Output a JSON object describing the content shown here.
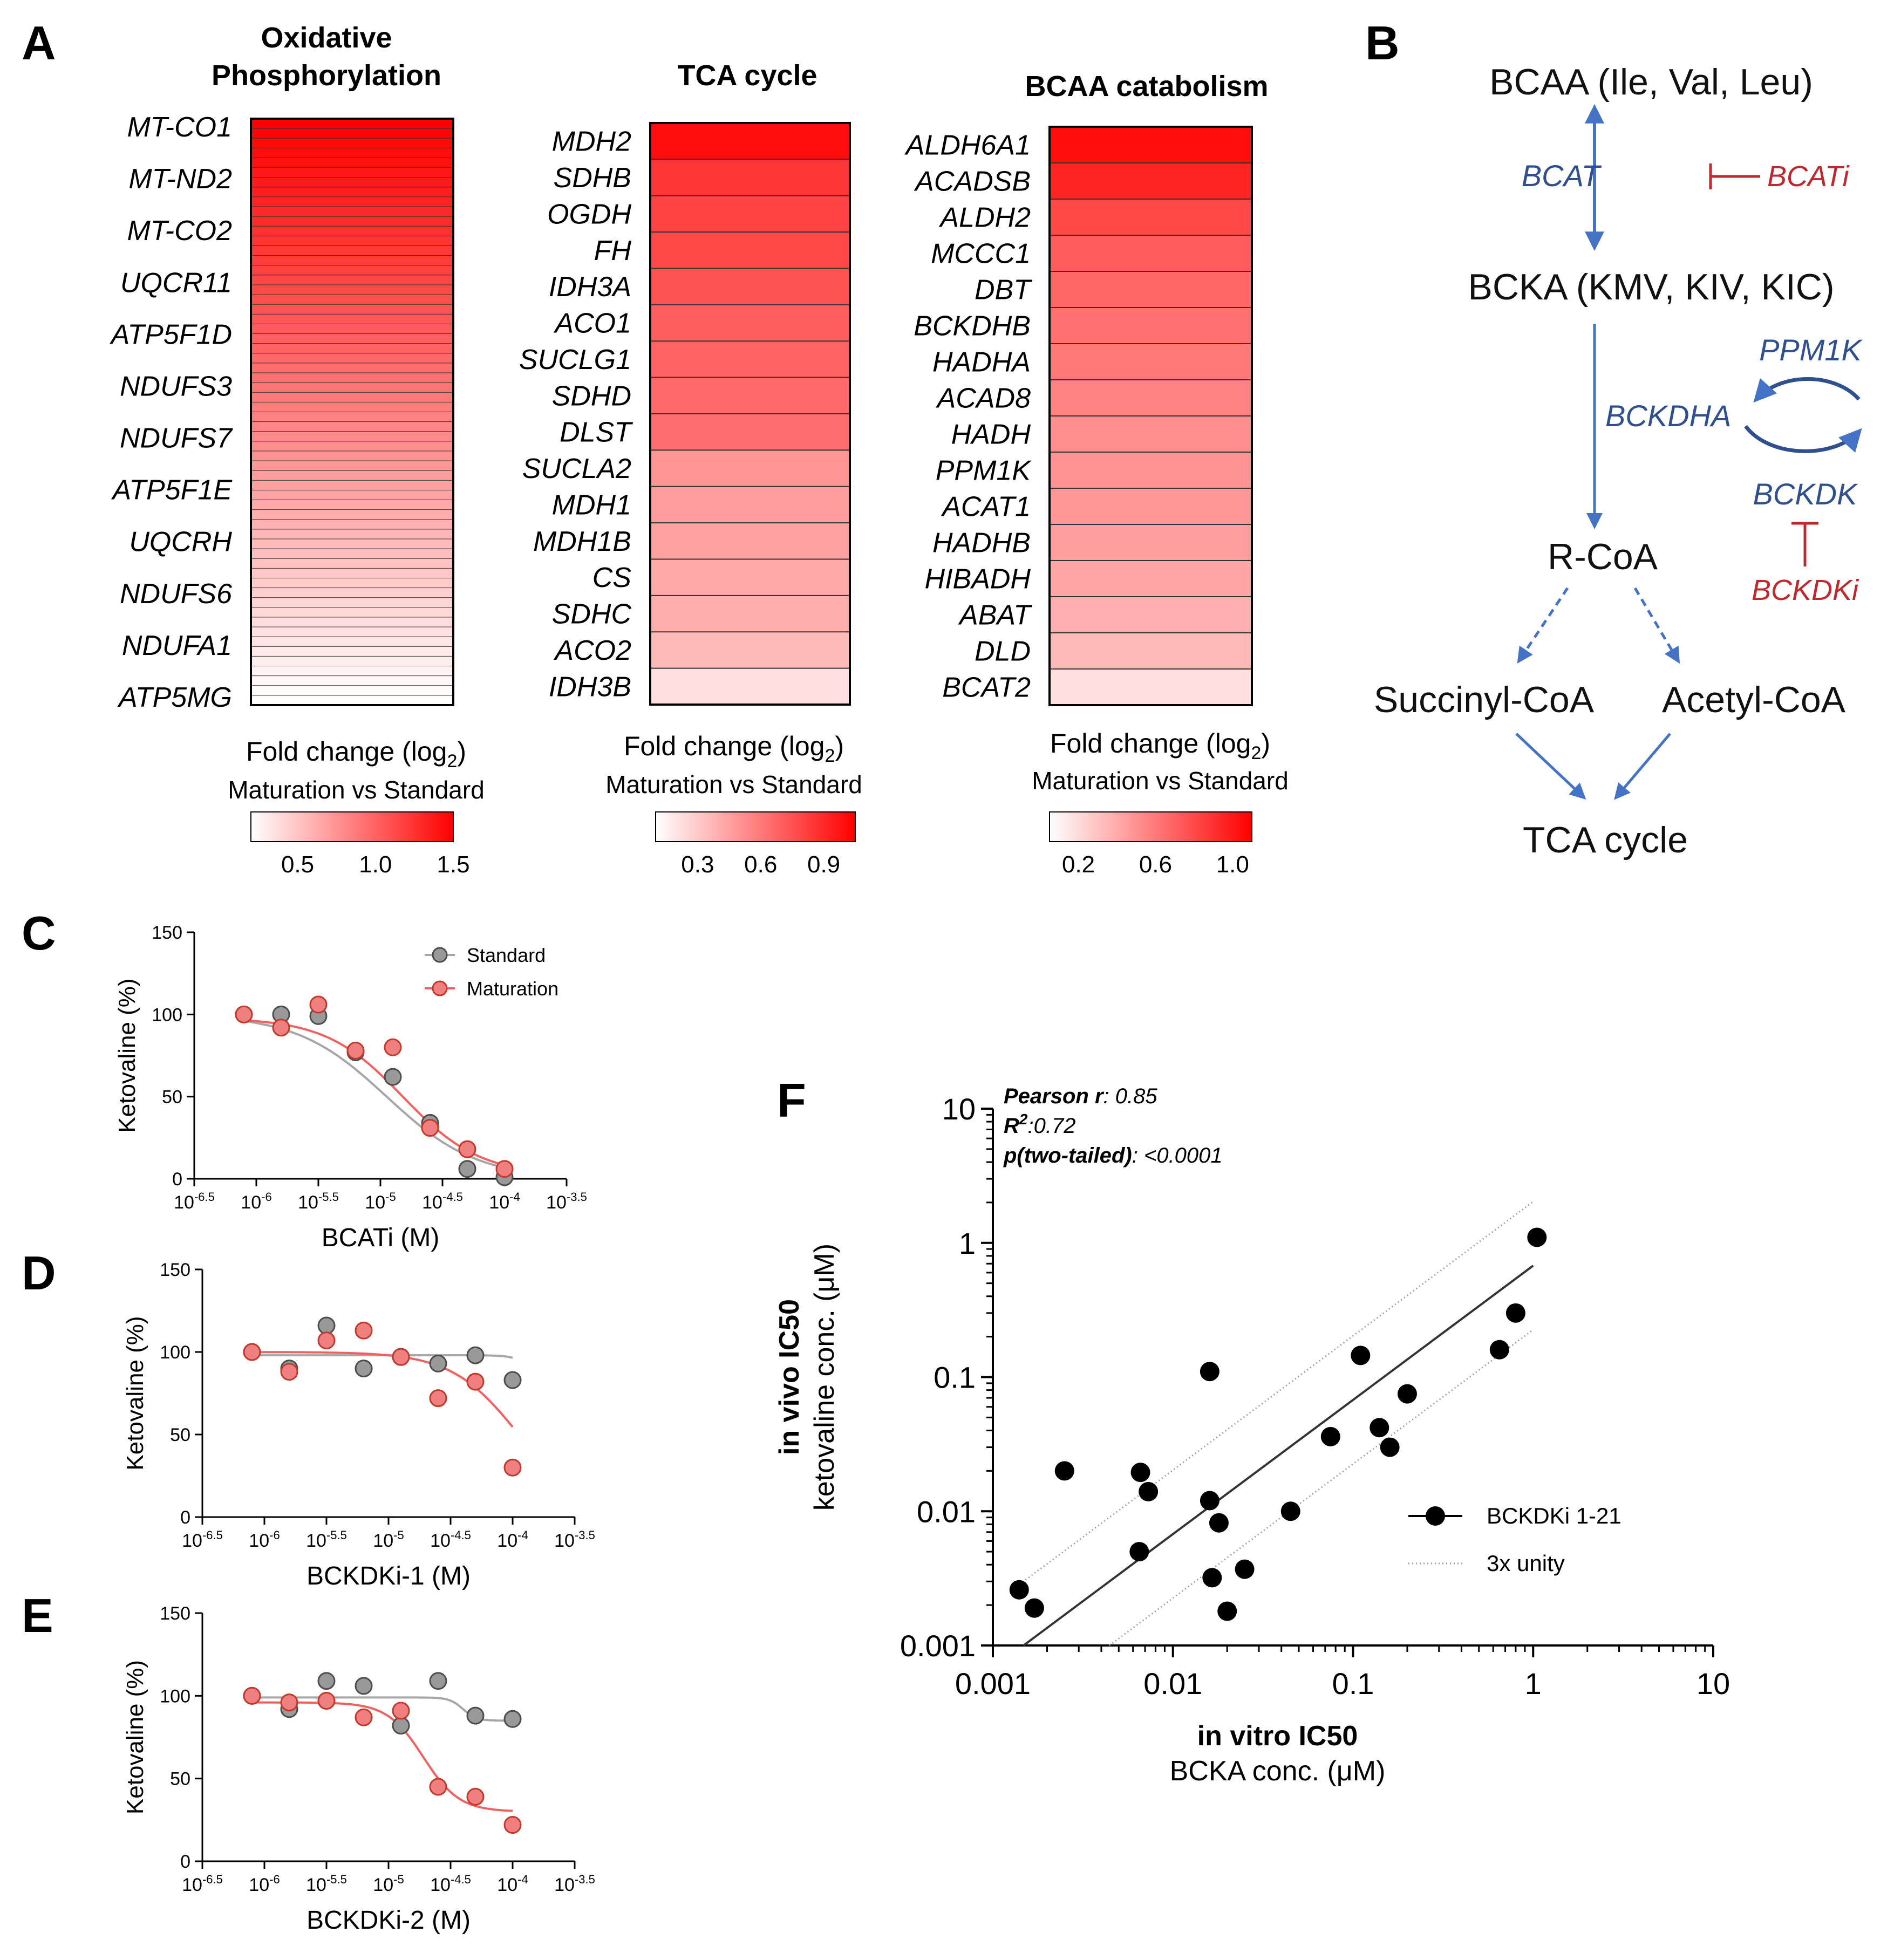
{
  "panels": {
    "A": "A",
    "B": "B",
    "C": "C",
    "D": "D",
    "E": "E",
    "F": "F"
  },
  "colors": {
    "red": "#ff0000",
    "pathway_blue": "#2f4f8f",
    "arrow_blue": "#4472c4",
    "inhibitor_red": "#c0282d",
    "standard_gray": "#999999",
    "maturation_red": "#f08080"
  },
  "heatmaps": [
    {
      "title_lines": [
        "Oxidative",
        "Phosphorylation"
      ],
      "genes": [
        "MT-CO1",
        "MT-ND2",
        "MT-CO2",
        "UQCR11",
        "ATP5F1D",
        "NDUFS3",
        "NDUFS7",
        "ATP5F1E",
        "UQCRH",
        "NDUFS6",
        "NDUFA1",
        "ATP5MG"
      ],
      "row_count": 60,
      "max_value": 1.5,
      "min_value": 0.2,
      "colorbar": {
        "title": "Fold change (log",
        "title_sub": "2",
        "title_end": ")",
        "subtitle": "Maturation vs Standard",
        "min": 0.2,
        "max": 1.5,
        "ticks": [
          "0.5",
          "1.0",
          "1.5"
        ]
      }
    },
    {
      "title_lines": [
        "TCA cycle"
      ],
      "genes": [
        "MDH2",
        "SDHB",
        "OGDH",
        "FH",
        "IDH3A",
        "ACO1",
        "SUCLG1",
        "SDHD",
        "DLST",
        "SUCLA2",
        "MDH1",
        "MDH1B",
        "CS",
        "SDHC",
        "ACO2",
        "IDH3B"
      ],
      "values": [
        1.0,
        0.85,
        0.8,
        0.78,
        0.74,
        0.7,
        0.68,
        0.66,
        0.64,
        0.5,
        0.47,
        0.45,
        0.42,
        0.4,
        0.36,
        0.22
      ],
      "colorbar": {
        "title": "Fold change (log",
        "title_sub": "2",
        "title_end": ")",
        "subtitle": "Maturation vs Standard",
        "min": 0.1,
        "max": 1.05,
        "ticks": [
          "0.3",
          "0.6",
          "0.9"
        ]
      }
    },
    {
      "title_lines": [
        "BCAA catabolism"
      ],
      "genes": [
        "ALDH6A1",
        "ACADSB",
        "ALDH2",
        "MCCC1",
        "DBT",
        "BCKDHB",
        "HADHA",
        "ACAD8",
        "HADH",
        "PPM1K",
        "ACAT1",
        "HADHB",
        "HIBADH",
        "ABAT",
        "DLD",
        "BCAT2"
      ],
      "values": [
        1.05,
        0.95,
        0.8,
        0.72,
        0.68,
        0.64,
        0.6,
        0.56,
        0.52,
        0.5,
        0.48,
        0.45,
        0.42,
        0.38,
        0.34,
        0.18
      ],
      "colorbar": {
        "title": "Fold change (log",
        "title_sub": "2",
        "title_end": ")",
        "subtitle": "Maturation vs Standard",
        "min": 0.05,
        "max": 1.1,
        "ticks": [
          "0.2",
          "0.6",
          "1.0"
        ]
      }
    }
  ],
  "pathway": {
    "bcaa": "BCAA (Ile, Val, Leu)",
    "bcat": "BCAT",
    "bcati": "BCATi",
    "bcka": "BCKA (KMV, KIV, KIC)",
    "ppm1k": "PPM1K",
    "bckdha": "BCKDHA",
    "bckdk": "BCKDK",
    "bckdki": "BCKDKi",
    "rcoa": "R-CoA",
    "succinyl": "Succinyl-CoA",
    "acetyl": "Acetyl-CoA",
    "tca": "TCA cycle"
  },
  "chart_data": [
    {
      "panel": "C",
      "type": "scatter",
      "xscale": "log10",
      "xlabel": "BCATi (M)",
      "ylabel": "Ketovaline (%)",
      "xlim": [
        -6.5,
        -3.5
      ],
      "ylim": [
        0,
        150
      ],
      "yticks": [
        0,
        50,
        100,
        150
      ],
      "xtick_base": "10",
      "xtick_exponents": [
        "-6.5",
        "-6",
        "-5.5",
        "-5",
        "-4.5",
        "-4",
        "-3.5"
      ],
      "legend": [
        "Standard",
        "Maturation"
      ],
      "series": [
        {
          "name": "Standard",
          "x": [
            -6.1,
            -5.8,
            -5.5,
            -5.2,
            -4.9,
            -4.6,
            -4.3,
            -4.0
          ],
          "y": [
            100,
            100,
            99,
            77,
            62,
            34,
            6,
            1
          ],
          "fit": {
            "top": 100,
            "bottom": 0,
            "logic50": -4.95,
            "hill": 1.2
          }
        },
        {
          "name": "Maturation",
          "x": [
            -6.1,
            -5.8,
            -5.5,
            -5.2,
            -4.9,
            -4.6,
            -4.3,
            -4.0
          ],
          "y": [
            100,
            92,
            106,
            78,
            80,
            31,
            18,
            6
          ],
          "fit": {
            "top": 98,
            "bottom": 2,
            "logic50": -4.82,
            "hill": 1.4
          }
        }
      ]
    },
    {
      "panel": "D",
      "type": "scatter",
      "xscale": "log10",
      "xlabel": "BCKDKi-1 (M)",
      "ylabel": "Ketovaline (%)",
      "xlim": [
        -6.5,
        -3.5
      ],
      "ylim": [
        0,
        150
      ],
      "yticks": [
        0,
        50,
        100,
        150
      ],
      "xtick_base": "10",
      "xtick_exponents": [
        "-6.5",
        "-6",
        "-5.5",
        "-5",
        "-4.5",
        "-4",
        "-3.5"
      ],
      "series": [
        {
          "name": "Standard",
          "x": [
            -6.1,
            -5.8,
            -5.5,
            -5.2,
            -4.9,
            -4.6,
            -4.3,
            -4.0
          ],
          "y": [
            100,
            90,
            116,
            90,
            97,
            93,
            98,
            83
          ],
          "fit": {
            "top": 98,
            "bottom": 0,
            "logic50": -3.7,
            "hill": 6
          }
        },
        {
          "name": "Maturation",
          "x": [
            -6.1,
            -5.8,
            -5.5,
            -5.2,
            -4.9,
            -4.6,
            -4.3,
            -4.0
          ],
          "y": [
            100,
            88,
            107,
            113,
            97,
            72,
            82,
            30
          ],
          "fit": {
            "top": 100,
            "bottom": 0,
            "logic50": -3.95,
            "hill": 1.6
          }
        }
      ]
    },
    {
      "panel": "E",
      "type": "scatter",
      "xscale": "log10",
      "xlabel": "BCKDKi-2 (M)",
      "ylabel": "Ketovaline (%)",
      "xlim": [
        -6.5,
        -3.5
      ],
      "ylim": [
        0,
        150
      ],
      "yticks": [
        0,
        50,
        100,
        150
      ],
      "xtick_base": "10",
      "xtick_exponents": [
        "-6.5",
        "-6",
        "-5.5",
        "-5",
        "-4.5",
        "-4",
        "-3.5"
      ],
      "series": [
        {
          "name": "Standard",
          "x": [
            -6.1,
            -5.8,
            -5.5,
            -5.2,
            -4.9,
            -4.6,
            -4.3,
            -4.0
          ],
          "y": [
            100,
            92,
            109,
            106,
            82,
            109,
            88,
            86
          ],
          "fit": {
            "top": 99,
            "bottom": 85,
            "logic50": -4.4,
            "hill": 8
          }
        },
        {
          "name": "Maturation",
          "x": [
            -6.1,
            -5.8,
            -5.5,
            -5.2,
            -4.9,
            -4.6,
            -4.3,
            -4.0
          ],
          "y": [
            100,
            96,
            97,
            87,
            91,
            45,
            39,
            22
          ],
          "fit": {
            "top": 96,
            "bottom": 30,
            "logic50": -4.72,
            "hill": 3
          }
        }
      ]
    },
    {
      "panel": "F",
      "type": "scatter",
      "xscale": "log10",
      "yscale": "log10",
      "xlabel_bold": "in vitro IC50",
      "xlabel": "BCKA conc. (μM)",
      "ylabel_bold": "in vivo IC50",
      "ylabel": "ketovaline conc. (μM)",
      "xlim": [
        0.001,
        10
      ],
      "ylim": [
        0.001,
        10
      ],
      "xticks": [
        "0.001",
        "0.01",
        "0.1",
        "1",
        "10"
      ],
      "yticks": [
        "0.001",
        "0.01",
        "0.1",
        "1",
        "10"
      ],
      "stats": {
        "pearson_label": "Pearson r",
        "pearson": ": 0.85",
        "r2_label": "R",
        "r2_sup": "2",
        "r2": ":0.72",
        "p_label": "p(two-tailed)",
        "p": ": <0.0001"
      },
      "legend": [
        "BCKDKi 1-21",
        "3x unity"
      ],
      "fit_line": {
        "slope": 1.0,
        "intercept": -0.17
      },
      "series": [
        {
          "name": "BCKDKi 1-21",
          "x": [
            0.0014,
            0.0017,
            0.0025,
            0.0065,
            0.0066,
            0.0073,
            0.016,
            0.016,
            0.0165,
            0.018,
            0.02,
            0.025,
            0.045,
            0.075,
            0.11,
            0.14,
            0.16,
            0.2,
            0.65,
            0.8,
            1.05
          ],
          "y": [
            0.0026,
            0.0019,
            0.02,
            0.005,
            0.0195,
            0.014,
            0.11,
            0.012,
            0.0032,
            0.0082,
            0.0018,
            0.0037,
            0.01,
            0.036,
            0.145,
            0.042,
            0.03,
            0.075,
            0.16,
            0.3,
            1.1
          ]
        }
      ]
    }
  ]
}
